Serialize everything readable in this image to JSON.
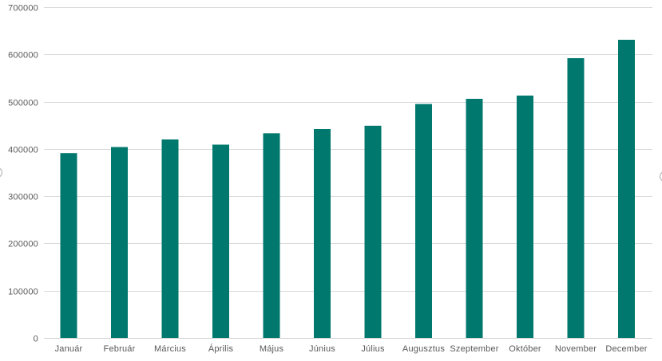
{
  "chart_data": {
    "type": "bar",
    "title": "",
    "xlabel": "",
    "ylabel": "",
    "categories": [
      "Január",
      "Február",
      "Március",
      "Április",
      "Május",
      "Június",
      "Július",
      "Augusztus",
      "Szeptember",
      "Október",
      "November",
      "December"
    ],
    "values": [
      391000,
      404000,
      420000,
      409000,
      433000,
      442000,
      449000,
      495000,
      506000,
      513000,
      592000,
      631000
    ],
    "ylim": [
      0,
      700000
    ],
    "ytick_step": 100000,
    "ytick_labels": [
      "0",
      "100000",
      "200000",
      "300000",
      "400000",
      "500000",
      "600000",
      "700000"
    ],
    "grid": "horizontal",
    "legend": "none"
  },
  "colors": {
    "bar": "#00786E",
    "gridline": "#D9D9D9",
    "axis_line": "#D0D0D0",
    "tick_label": "#595959",
    "background": "#FFFFFF",
    "handle_border": "#ABABAB"
  }
}
